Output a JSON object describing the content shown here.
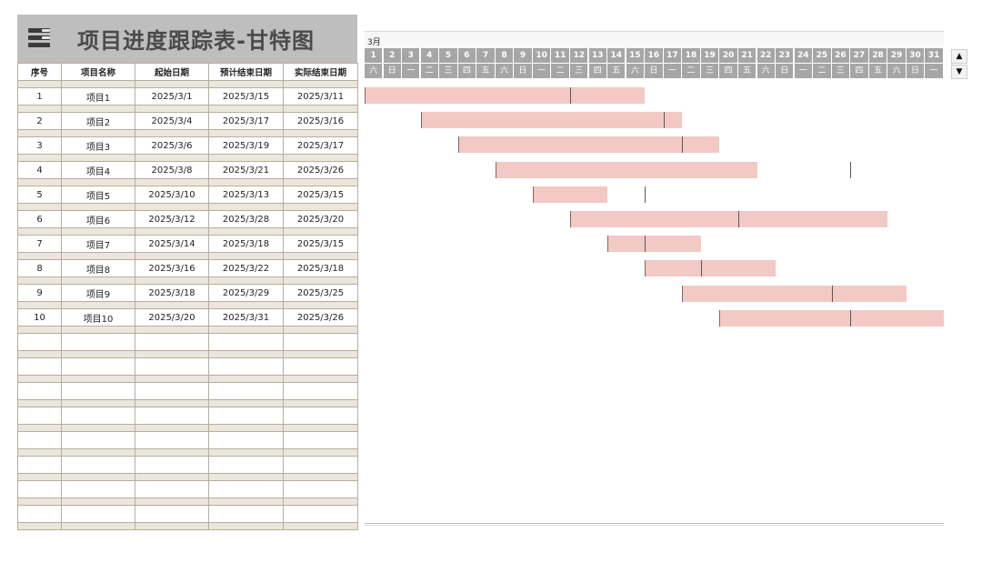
{
  "sheet": {
    "title": "项目进度跟踪表-甘特图",
    "menu_icon": "menu-list-icon"
  },
  "table": {
    "headers": [
      "序号",
      "项目名称",
      "起始日期",
      "预计结束日期",
      "实际结束日期"
    ],
    "rows": [
      {
        "no": "1",
        "name": "项目1",
        "start": "2025/3/1",
        "planned_end": "2025/3/15",
        "actual_end": "2025/3/11"
      },
      {
        "no": "2",
        "name": "项目2",
        "start": "2025/3/4",
        "planned_end": "2025/3/17",
        "actual_end": "2025/3/16"
      },
      {
        "no": "3",
        "name": "项目3",
        "start": "2025/3/6",
        "planned_end": "2025/3/19",
        "actual_end": "2025/3/17"
      },
      {
        "no": "4",
        "name": "项目4",
        "start": "2025/3/8",
        "planned_end": "2025/3/21",
        "actual_end": "2025/3/26"
      },
      {
        "no": "5",
        "name": "项目5",
        "start": "2025/3/10",
        "planned_end": "2025/3/13",
        "actual_end": "2025/3/15"
      },
      {
        "no": "6",
        "name": "项目6",
        "start": "2025/3/12",
        "planned_end": "2025/3/28",
        "actual_end": "2025/3/20"
      },
      {
        "no": "7",
        "name": "项目7",
        "start": "2025/3/14",
        "planned_end": "2025/3/18",
        "actual_end": "2025/3/15"
      },
      {
        "no": "8",
        "name": "项目8",
        "start": "2025/3/16",
        "planned_end": "2025/3/22",
        "actual_end": "2025/3/18"
      },
      {
        "no": "9",
        "name": "项目9",
        "start": "2025/3/18",
        "planned_end": "2025/3/29",
        "actual_end": "2025/3/25"
      },
      {
        "no": "10",
        "name": "项目10",
        "start": "2025/3/20",
        "planned_end": "2025/3/31",
        "actual_end": "2025/3/26"
      }
    ],
    "empty_rows": 8
  },
  "gantt": {
    "month": "3月",
    "days": [
      "1",
      "2",
      "3",
      "4",
      "5",
      "6",
      "7",
      "8",
      "9",
      "10",
      "11",
      "12",
      "13",
      "14",
      "15",
      "16",
      "17",
      "18",
      "19",
      "20",
      "21",
      "22",
      "23",
      "24",
      "25",
      "26",
      "27",
      "28",
      "29",
      "30",
      "31"
    ],
    "weekdays": [
      "六",
      "日",
      "一",
      "二",
      "三",
      "四",
      "五",
      "六",
      "日",
      "一",
      "二",
      "三",
      "四",
      "五",
      "六",
      "日",
      "一",
      "二",
      "三",
      "四",
      "五",
      "六",
      "日",
      "一",
      "二",
      "三",
      "四",
      "五",
      "六",
      "日",
      "一"
    ],
    "bar_color": "#f3c9c5",
    "header_color": "#a6a6a6"
  },
  "scroll": {
    "up_icon": "▲",
    "down_icon": "▼"
  }
}
